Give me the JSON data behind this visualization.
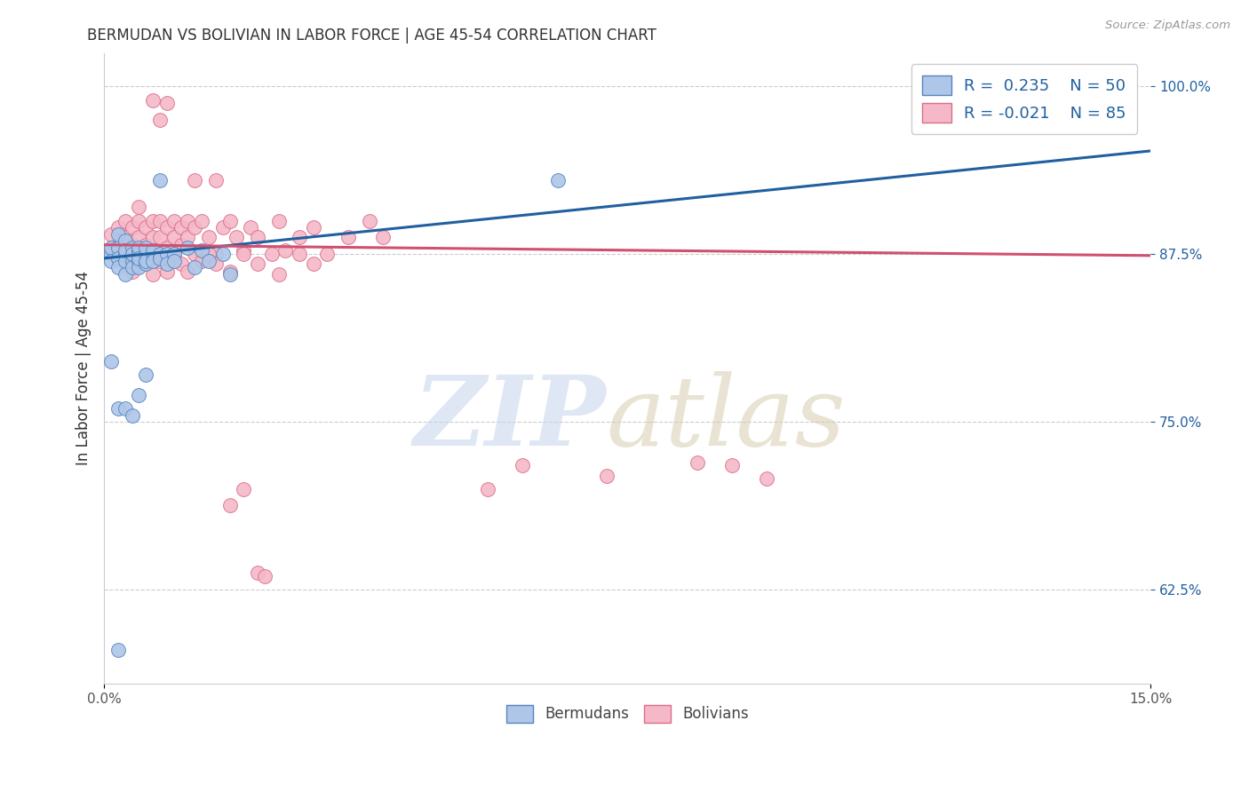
{
  "title": "BERMUDAN VS BOLIVIAN IN LABOR FORCE | AGE 45-54 CORRELATION CHART",
  "source_text": "Source: ZipAtlas.com",
  "ylabel": "In Labor Force | Age 45-54",
  "xlim": [
    0.0,
    0.15
  ],
  "ylim": [
    0.555,
    1.025
  ],
  "xticks": [
    0.0,
    0.15
  ],
  "xtick_labels": [
    "0.0%",
    "15.0%"
  ],
  "yticks": [
    0.625,
    0.75,
    0.875,
    1.0
  ],
  "ytick_labels": [
    "62.5%",
    "75.0%",
    "87.5%",
    "100.0%"
  ],
  "blue_R": 0.235,
  "blue_N": 50,
  "pink_R": -0.021,
  "pink_N": 85,
  "blue_color": "#aec6e8",
  "pink_color": "#f5b8c8",
  "blue_edge_color": "#5585c0",
  "pink_edge_color": "#d9708a",
  "blue_line_color": "#2060a0",
  "pink_line_color": "#d05070",
  "legend_blue_label": "Bermudans",
  "legend_pink_label": "Bolivians",
  "blue_line_x0": 0.0,
  "blue_line_y0": 0.872,
  "blue_line_x1": 0.15,
  "blue_line_y1": 0.952,
  "pink_line_x0": 0.0,
  "pink_line_y0": 0.882,
  "pink_line_x1": 0.15,
  "pink_line_y1": 0.874,
  "blue_scatter_x": [
    0.001,
    0.001,
    0.001,
    0.002,
    0.002,
    0.002,
    0.002,
    0.003,
    0.003,
    0.003,
    0.003,
    0.003,
    0.004,
    0.004,
    0.004,
    0.004,
    0.005,
    0.005,
    0.005,
    0.005,
    0.005,
    0.005,
    0.006,
    0.006,
    0.006,
    0.006,
    0.007,
    0.007,
    0.007,
    0.008,
    0.008,
    0.009,
    0.009,
    0.01,
    0.01,
    0.012,
    0.013,
    0.014,
    0.015,
    0.017,
    0.018,
    0.001,
    0.002,
    0.003,
    0.004,
    0.005,
    0.006,
    0.008,
    0.065,
    0.002
  ],
  "blue_scatter_y": [
    0.875,
    0.88,
    0.87,
    0.88,
    0.872,
    0.865,
    0.89,
    0.875,
    0.885,
    0.87,
    0.86,
    0.878,
    0.88,
    0.87,
    0.865,
    0.875,
    0.878,
    0.87,
    0.875,
    0.865,
    0.88,
    0.872,
    0.875,
    0.868,
    0.88,
    0.87,
    0.875,
    0.878,
    0.87,
    0.875,
    0.872,
    0.875,
    0.868,
    0.875,
    0.87,
    0.88,
    0.865,
    0.878,
    0.87,
    0.875,
    0.86,
    0.795,
    0.76,
    0.76,
    0.755,
    0.77,
    0.785,
    0.93,
    0.93,
    0.58
  ],
  "pink_scatter_x": [
    0.001,
    0.001,
    0.002,
    0.002,
    0.003,
    0.003,
    0.003,
    0.004,
    0.004,
    0.004,
    0.005,
    0.005,
    0.005,
    0.005,
    0.006,
    0.006,
    0.006,
    0.007,
    0.007,
    0.007,
    0.008,
    0.008,
    0.008,
    0.009,
    0.009,
    0.01,
    0.01,
    0.011,
    0.011,
    0.012,
    0.012,
    0.013,
    0.013,
    0.014,
    0.015,
    0.016,
    0.017,
    0.018,
    0.019,
    0.02,
    0.021,
    0.022,
    0.024,
    0.025,
    0.026,
    0.028,
    0.03,
    0.032,
    0.035,
    0.038,
    0.04,
    0.003,
    0.004,
    0.005,
    0.006,
    0.007,
    0.008,
    0.009,
    0.01,
    0.011,
    0.012,
    0.014,
    0.015,
    0.016,
    0.018,
    0.02,
    0.022,
    0.025,
    0.028,
    0.03,
    0.007,
    0.008,
    0.009,
    0.013,
    0.016,
    0.018,
    0.02,
    0.085,
    0.09,
    0.095,
    0.022,
    0.023,
    0.055,
    0.06,
    0.072
  ],
  "pink_scatter_y": [
    0.89,
    0.878,
    0.895,
    0.882,
    0.9,
    0.888,
    0.875,
    0.895,
    0.882,
    0.87,
    0.9,
    0.888,
    0.875,
    0.91,
    0.895,
    0.882,
    0.868,
    0.9,
    0.888,
    0.875,
    0.9,
    0.888,
    0.875,
    0.895,
    0.88,
    0.9,
    0.888,
    0.895,
    0.882,
    0.9,
    0.888,
    0.875,
    0.895,
    0.9,
    0.888,
    0.875,
    0.895,
    0.9,
    0.888,
    0.878,
    0.895,
    0.888,
    0.875,
    0.9,
    0.878,
    0.888,
    0.895,
    0.875,
    0.888,
    0.9,
    0.888,
    0.87,
    0.862,
    0.875,
    0.868,
    0.86,
    0.87,
    0.862,
    0.875,
    0.868,
    0.862,
    0.87,
    0.875,
    0.868,
    0.862,
    0.875,
    0.868,
    0.86,
    0.875,
    0.868,
    0.99,
    0.975,
    0.988,
    0.93,
    0.93,
    0.688,
    0.7,
    0.72,
    0.718,
    0.708,
    0.638,
    0.635,
    0.7,
    0.718,
    0.71
  ]
}
